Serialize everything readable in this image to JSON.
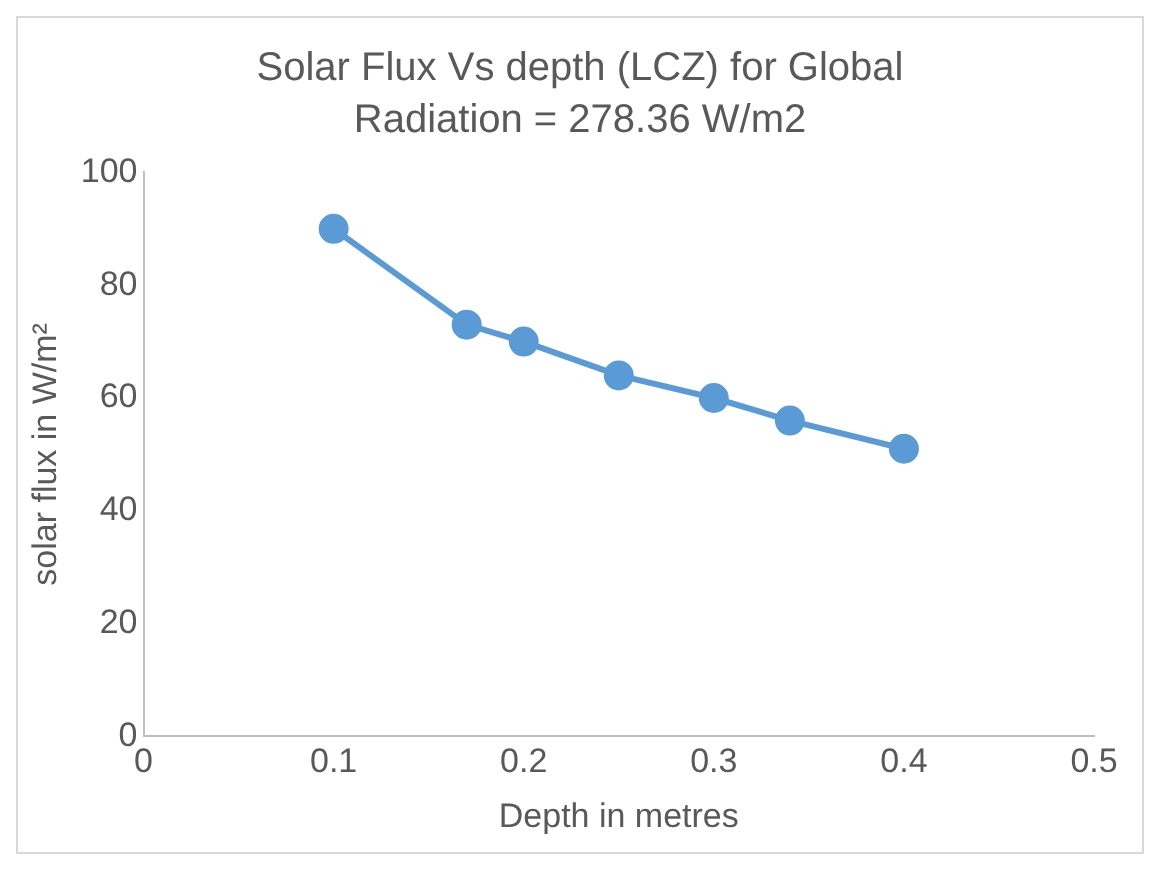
{
  "chart_data": {
    "type": "line",
    "title": "Solar Flux Vs depth (LCZ) for Global Radiation = 278.36 W/m2",
    "xlabel": "Depth in metres",
    "ylabel": "solar flux in W/m²",
    "x": [
      0.1,
      0.17,
      0.2,
      0.25,
      0.3,
      0.34,
      0.4
    ],
    "series": [
      {
        "color": "#5b9bd5",
        "values": [
          90,
          73,
          70,
          64,
          60,
          56,
          51
        ]
      }
    ],
    "xlim": [
      0,
      0.5
    ],
    "xticks": [
      0,
      0.1,
      0.2,
      0.3,
      0.4,
      0.5
    ],
    "ylim": [
      0,
      100
    ],
    "yticks": [
      0,
      20,
      40,
      60,
      80,
      100
    ],
    "grid": false,
    "legend": false,
    "marker": "circle",
    "line_style": "solid"
  }
}
